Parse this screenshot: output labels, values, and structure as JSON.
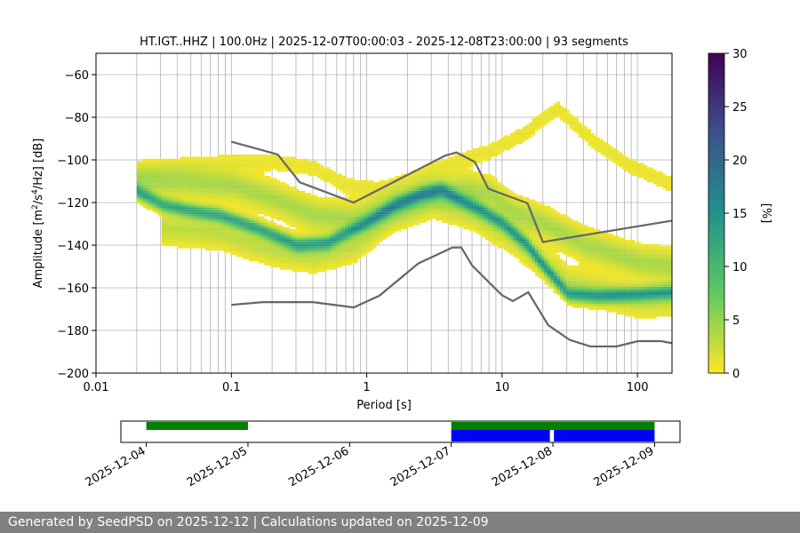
{
  "chart_data": [
    {
      "type": "heatmap",
      "title": "HT.IGT..HHZ | 100.0Hz | 2025-12-07T00:00:03 - 2025-12-08T23:00:00 | 93 segments",
      "xlabel": "Period [s]",
      "ylabel_parts": [
        "Amplitude [m",
        "2",
        "/s",
        "4",
        "/Hz] [dB]"
      ],
      "xscale": "log",
      "xlim": [
        0.01,
        180
      ],
      "ylim": [
        -200,
        -50
      ],
      "xticks": [
        {
          "value": 0.01,
          "label": "0.01"
        },
        {
          "value": 0.1,
          "label": "0.1"
        },
        {
          "value": 1,
          "label": "1"
        },
        {
          "value": 10,
          "label": "10"
        },
        {
          "value": 100,
          "label": "100"
        }
      ],
      "yticks": [
        {
          "value": -60,
          "label": "−60"
        },
        {
          "value": -80,
          "label": "−80"
        },
        {
          "value": -100,
          "label": "−100"
        },
        {
          "value": -120,
          "label": "−120"
        },
        {
          "value": -140,
          "label": "−140"
        },
        {
          "value": -160,
          "label": "−160"
        },
        {
          "value": -180,
          "label": "−180"
        },
        {
          "value": -200,
          "label": "−200"
        }
      ],
      "grid": true,
      "colorbar": {
        "label": "[%]",
        "range": [
          0,
          30
        ],
        "ticks": [
          {
            "value": 0,
            "label": "0"
          },
          {
            "value": 5,
            "label": "5"
          },
          {
            "value": 10,
            "label": "10"
          },
          {
            "value": 15,
            "label": "15"
          },
          {
            "value": 20,
            "label": "20"
          },
          {
            "value": 25,
            "label": "25"
          },
          {
            "value": 30,
            "label": "30"
          }
        ],
        "colormap": [
          "#fde725",
          "#5ec962",
          "#21918c",
          "#3b528b",
          "#440154"
        ]
      },
      "noise_models": [
        {
          "name": "high",
          "points": [
            [
              0.1,
              -91.5
            ],
            [
              0.22,
              -97.4
            ],
            [
              0.32,
              -110.5
            ],
            [
              0.8,
              -120
            ],
            [
              3.8,
              -98
            ],
            [
              4.6,
              -96.5
            ],
            [
              6.3,
              -101
            ],
            [
              7.9,
              -113.5
            ],
            [
              15.4,
              -120.3
            ],
            [
              20,
              -138.5
            ],
            [
              180,
              -128.5
            ]
          ]
        },
        {
          "name": "low",
          "points": [
            [
              0.1,
              -168
            ],
            [
              0.17,
              -166.7
            ],
            [
              0.4,
              -166.7
            ],
            [
              0.8,
              -169.2
            ],
            [
              1.24,
              -163.7
            ],
            [
              2.4,
              -148.6
            ],
            [
              4.3,
              -141.1
            ],
            [
              5,
              -141.1
            ],
            [
              6,
              -149.5
            ],
            [
              10,
              -163.5
            ],
            [
              12,
              -166.2
            ],
            [
              15.6,
              -162.1
            ],
            [
              21.9,
              -177.5
            ],
            [
              31.6,
              -184.4
            ],
            [
              45,
              -187.5
            ],
            [
              70,
              -187.5
            ],
            [
              101,
              -185
            ],
            [
              150,
              -185
            ],
            [
              180,
              -186
            ]
          ]
        }
      ],
      "psd_modes": [
        {
          "name": "main",
          "probability": 12,
          "points": [
            [
              0.02,
              -115
            ],
            [
              0.03,
              -121
            ],
            [
              0.05,
              -124
            ],
            [
              0.08,
              -126
            ],
            [
              0.15,
              -132
            ],
            [
              0.3,
              -140
            ],
            [
              0.5,
              -139
            ],
            [
              1,
              -129
            ],
            [
              1.6,
              -121
            ],
            [
              2.5,
              -116
            ],
            [
              3.5,
              -114
            ],
            [
              4.5,
              -118
            ],
            [
              7,
              -124
            ],
            [
              10,
              -130
            ],
            [
              15,
              -140
            ],
            [
              20,
              -150
            ],
            [
              30,
              -163
            ],
            [
              50,
              -164
            ],
            [
              100,
              -163
            ],
            [
              180,
              -162
            ]
          ]
        },
        {
          "name": "upper",
          "probability": 4,
          "points": [
            [
              0.02,
              -110
            ],
            [
              0.04,
              -110
            ],
            [
              0.1,
              -112
            ],
            [
              0.2,
              -118
            ],
            [
              0.4,
              -126
            ],
            [
              0.8,
              -128
            ],
            [
              1.5,
              -121
            ],
            [
              3,
              -115
            ],
            [
              5,
              -114
            ],
            [
              8,
              -116
            ],
            [
              12,
              -125
            ],
            [
              20,
              -130
            ],
            [
              40,
              -140
            ],
            [
              100,
              -148
            ],
            [
              180,
              -150
            ]
          ]
        },
        {
          "name": "outlier-high",
          "probability": 1,
          "points": [
            [
              0.02,
              -106
            ],
            [
              0.05,
              -103
            ],
            [
              0.1,
              -101
            ],
            [
              0.2,
              -101
            ],
            [
              0.4,
              -104
            ],
            [
              0.7,
              -112
            ],
            [
              1.2,
              -114
            ],
            [
              2,
              -110
            ],
            [
              4,
              -102
            ],
            [
              8,
              -96
            ],
            [
              14,
              -88
            ],
            [
              25,
              -76
            ],
            [
              40,
              -88
            ],
            [
              80,
              -102
            ],
            [
              180,
              -112
            ]
          ]
        },
        {
          "name": "lower",
          "probability": 3,
          "points": [
            [
              0.03,
              -132
            ],
            [
              0.08,
              -134
            ],
            [
              0.2,
              -142
            ],
            [
              0.4,
              -145
            ],
            [
              0.8,
              -140
            ],
            [
              1.5,
              -126
            ],
            [
              3,
              -119
            ],
            [
              6,
              -125
            ],
            [
              12,
              -137
            ],
            [
              30,
              -158
            ],
            [
              100,
              -166
            ],
            [
              180,
              -165
            ]
          ]
        }
      ]
    },
    {
      "type": "timeline",
      "xticks": [
        "2025-12-04",
        "2025-12-05",
        "2025-12-06",
        "2025-12-07",
        "2025-12-08",
        "2025-12-09"
      ],
      "xlim_days": [
        -0.25,
        5.25
      ],
      "green_segments": [
        [
          0,
          1
        ],
        [
          3,
          5
        ]
      ],
      "blue_segments": [
        [
          3,
          3.97
        ],
        [
          4.01,
          5
        ]
      ],
      "colors": {
        "green": "#008000",
        "blue": "#0000ff"
      }
    }
  ],
  "footer": {
    "text": "Generated by SeedPSD on 2025-12-12 | Calculations updated on 2025-12-09"
  }
}
